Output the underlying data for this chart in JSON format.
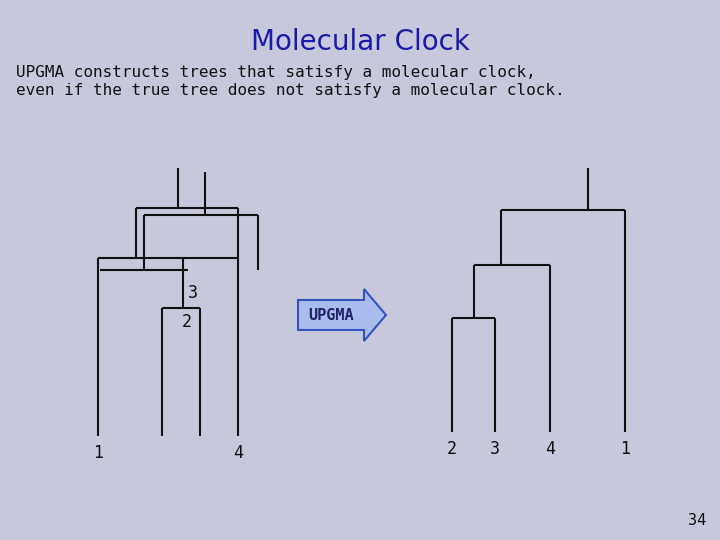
{
  "title": "Molecular Clock",
  "title_color": "#1a1aaa",
  "title_fontsize": 20,
  "body_text_line1": "UPGMA constructs trees that satisfy a molecular clock,",
  "body_text_line2": "even if the true tree does not satisfy a molecular clock.",
  "body_fontsize": 11.5,
  "bg_color": "#c8c8dc",
  "page_number": "34",
  "line_color": "#111111",
  "line_width": 1.5,
  "arrow_text": "UPGMA",
  "arrow_facecolor": "#aabbee",
  "arrow_edgecolor": "#3355bb"
}
